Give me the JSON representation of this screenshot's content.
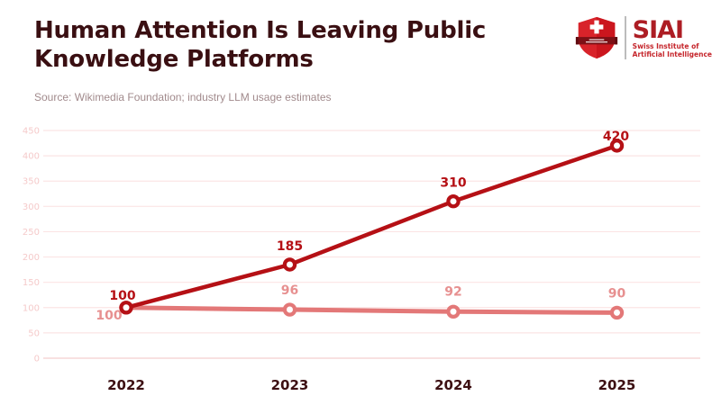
{
  "header": {
    "title_line1": "Human Attention Is Leaving Public",
    "title_line2": "Knowledge Platforms",
    "source": "Source: Wikimedia Foundation; industry LLM usage estimates"
  },
  "logo": {
    "acronym": "SIAI",
    "org_line1": "Swiss Institute of",
    "org_line2": "Artificial Intelligence"
  },
  "colors": {
    "title": "#3a0f12",
    "source": "#a18a8c",
    "grid": "#fbe4e4",
    "axis_zero": "#f3cfcf",
    "ytick": "#f5caca",
    "xtick": "#3d1013",
    "dark_red": "#b51015",
    "light_pink": "#e37878",
    "light_pink_label": "#e79090",
    "logo_red": "#d8232a",
    "logo_banner": "#7d1016"
  },
  "chart_data": {
    "type": "line",
    "categories": [
      "2022",
      "2023",
      "2024",
      "2025"
    ],
    "series": [
      {
        "name": "dark-red-line",
        "color": "#b51015",
        "values": [
          100,
          185,
          310,
          420
        ],
        "labels": [
          "100",
          "185",
          "310",
          "420"
        ]
      },
      {
        "name": "light-pink-line",
        "color": "#e37878",
        "label_color": "#e79090",
        "values": [
          100,
          96,
          92,
          90
        ],
        "labels": [
          "100",
          "96",
          "92",
          "90"
        ]
      }
    ],
    "ylim": [
      0,
      450
    ],
    "yticks": [
      0,
      50,
      100,
      150,
      200,
      250,
      300,
      350,
      400,
      450
    ],
    "grid": true,
    "legend": false
  }
}
